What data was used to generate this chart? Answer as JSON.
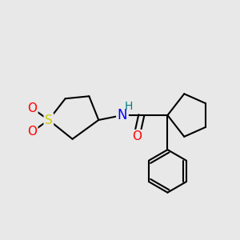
{
  "bg_color": "#e8e8e8",
  "bond_color": "#000000",
  "bond_width": 1.5,
  "atom_colors": {
    "S": "#cccc00",
    "O": "#ff0000",
    "N": "#0000ff",
    "H": "#008080",
    "C": "#000000"
  },
  "font_size": 11,
  "fig_size": [
    3.0,
    3.0
  ],
  "dpi": 100
}
